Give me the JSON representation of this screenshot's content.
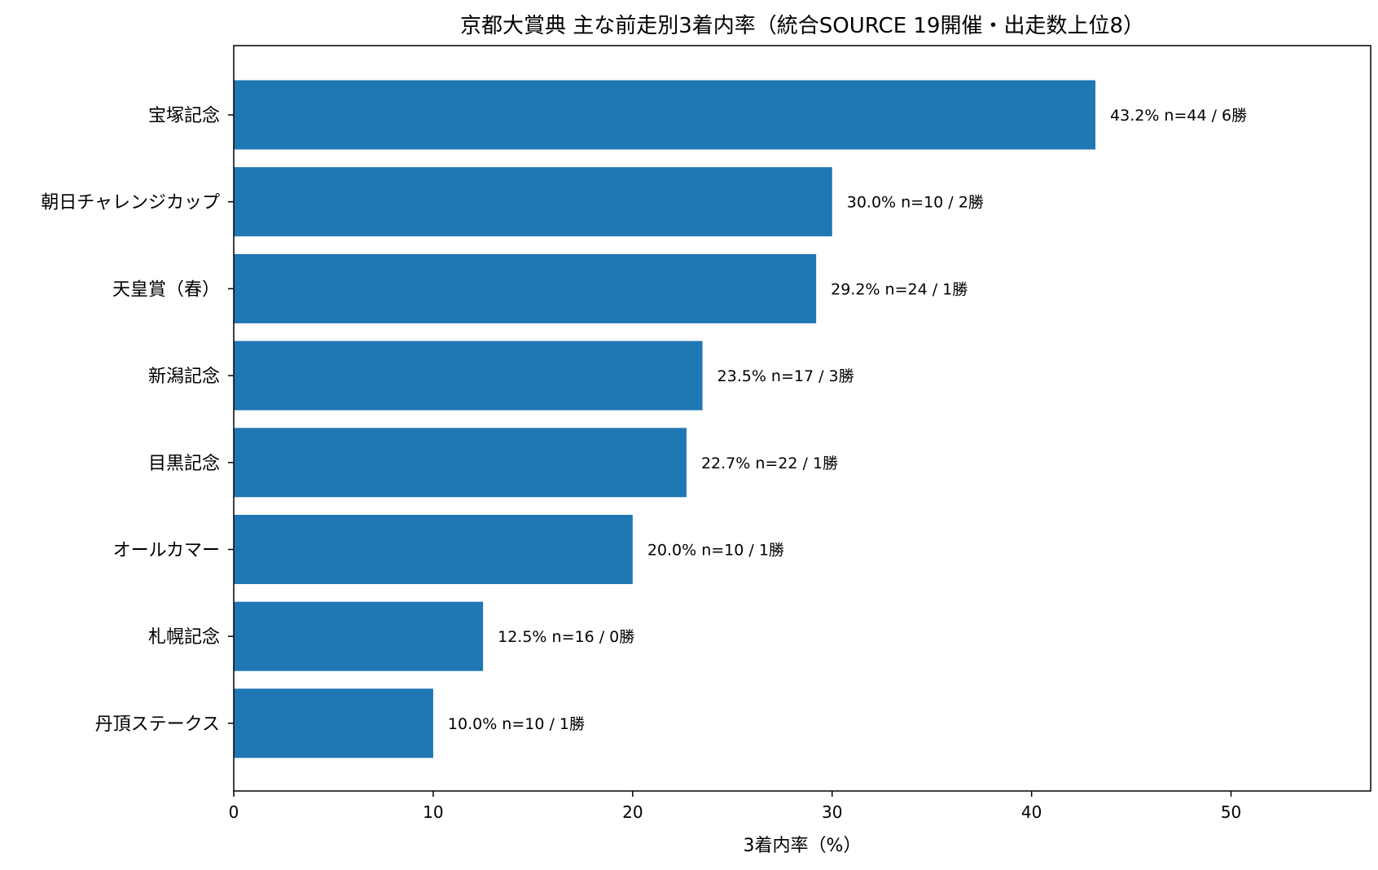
{
  "chart_data": {
    "type": "bar",
    "orientation": "horizontal",
    "title": "京都大賞典 主な前走別3着内率（統合SOURCE 19開催・出走数上位8）",
    "xlabel": "3着内率（%）",
    "ylabel": "",
    "xlim": [
      0,
      57
    ],
    "xticks": [
      "0",
      "10",
      "20",
      "30",
      "40",
      "50"
    ],
    "categories": [
      "宝塚記念",
      "朝日チャレンジカップ",
      "天皇賞（春）",
      "新潟記念",
      "目黒記念",
      "オールカマー",
      "札幌記念",
      "丹頂ステークス"
    ],
    "values": [
      43.2,
      30.0,
      29.2,
      23.5,
      22.7,
      20.0,
      12.5,
      10.0
    ],
    "bar_labels": [
      "43.2%  n=44 / 6勝",
      "30.0%  n=10 / 2勝",
      "29.2%  n=24 / 1勝",
      "23.5%  n=17 / 3勝",
      "22.7%  n=22 / 1勝",
      "20.0%  n=10 / 1勝",
      "12.5%  n=16 / 0勝",
      "10.0%  n=10 / 1勝"
    ],
    "bar_color": "#1f77b4",
    "grid": false,
    "legend": "none"
  }
}
